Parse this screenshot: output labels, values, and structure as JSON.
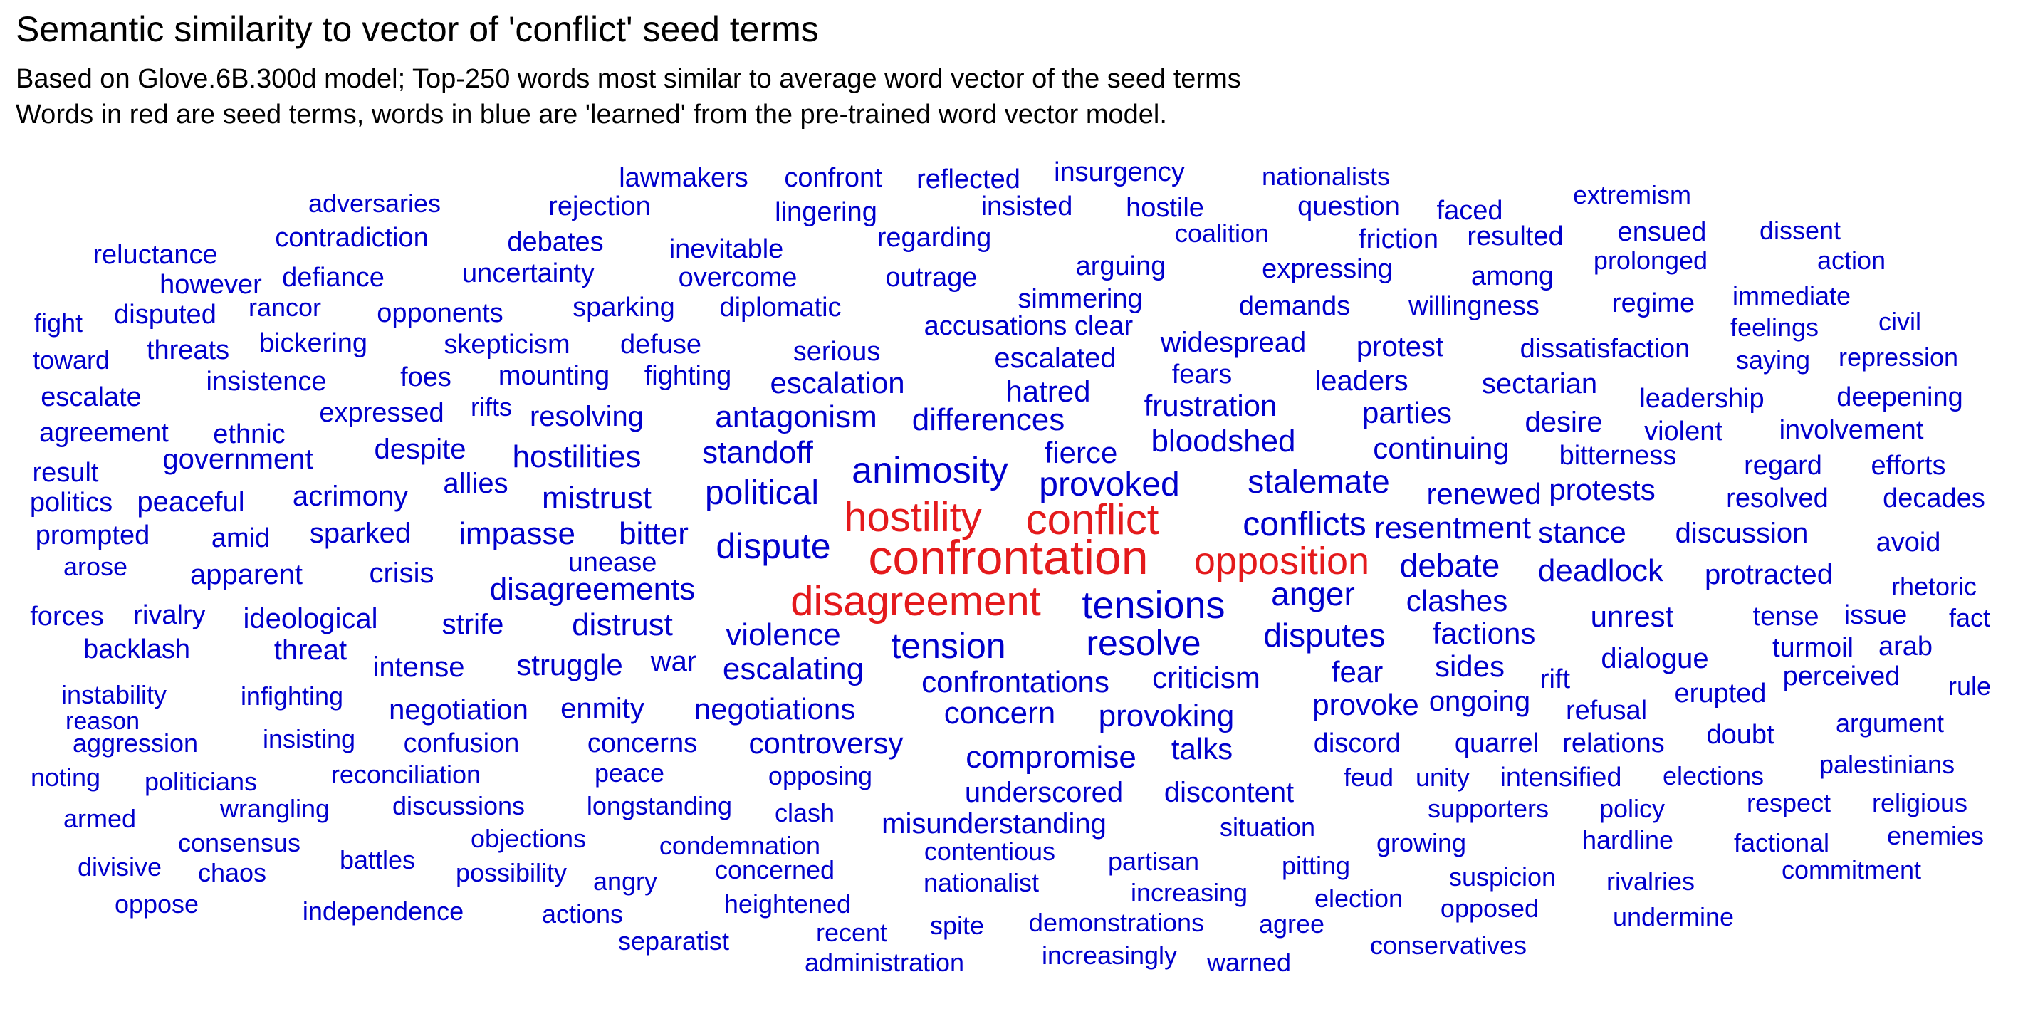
{
  "header": {
    "title": "Semantic similarity to vector of 'conflict' seed terms",
    "subtitle_1": "Based on Glove.6B.300d model; Top-250 words most similar to average word vector of the seed terms",
    "subtitle_2": "Words in red are seed terms, words in blue are 'learned' from the pre-trained word vector model."
  },
  "colors": {
    "seed": "#e41a1c",
    "learned": "#0000cc",
    "background": "#ffffff",
    "text": "#000000"
  },
  "chart_data": {
    "type": "wordcloud",
    "title": "Semantic similarity to vector of 'conflict' seed terms",
    "subtitle": [
      "Based on Glove.6B.300d model; Top-250 words most similar to average word vector of the seed terms",
      "Words in red are seed terms, words in blue are 'learned' from the pre-trained word vector model."
    ],
    "seed_terms": [
      "conflict",
      "confrontation",
      "disagreement",
      "hostility",
      "opposition"
    ],
    "words": [
      "confrontation",
      "conflict",
      "hostility",
      "disagreement",
      "opposition",
      "tensions",
      "animosity",
      "dispute",
      "provoked",
      "stalemate",
      "conflicts",
      "tension",
      "resolve",
      "political",
      "anger",
      "debate",
      "disputes",
      "bloodshed",
      "disagreements",
      "violence",
      "antagonism",
      "standoff",
      "escalating",
      "differences",
      "hostilities",
      "resentment",
      "deadlock",
      "clashes",
      "factions",
      "mistrust",
      "impasse",
      "bitter",
      "distrust",
      "confrontations",
      "concern",
      "provoking",
      "compromise",
      "criticism",
      "continuing",
      "renewed",
      "protests",
      "stance",
      "discussion",
      "protracted",
      "negotiations",
      "controversy",
      "struggle",
      "escalation",
      "fierce",
      "frustration",
      "hatred",
      "parties",
      "unrest",
      "dialogue",
      "sides",
      "fear",
      "provoke",
      "ongoing",
      "talks",
      "underscored",
      "discontent",
      "misunderstanding",
      "acrimony",
      "sparked",
      "crisis",
      "apparent",
      "ideological",
      "strife",
      "intense",
      "negotiation",
      "enmity",
      "resolving",
      "escalated",
      "widespread",
      "fears",
      "leaders",
      "sectarian",
      "desire",
      "leadership",
      "deepening",
      "violent",
      "involvement",
      "bitterness",
      "regard",
      "efforts",
      "resolved",
      "decades",
      "avoid",
      "rhetoric",
      "tense",
      "issue",
      "fact",
      "turmoil",
      "arab",
      "perceived",
      "rule",
      "erupted",
      "refusal",
      "rift",
      "quarrel",
      "discord",
      "relations",
      "doubt",
      "argument",
      "feud",
      "unity",
      "intensified",
      "elections",
      "palestinians",
      "supporters",
      "policy",
      "respect",
      "religious",
      "hardline",
      "factional",
      "enemies",
      "commitment",
      "rivalries",
      "suspicion",
      "opposed",
      "undermine",
      "growing",
      "situation",
      "partisan",
      "pitting",
      "increasing",
      "election",
      "conservatives",
      "nationalist",
      "contentious",
      "demonstrations",
      "spite",
      "agree",
      "increasingly",
      "warned",
      "recent",
      "administration",
      "heightened",
      "concerned",
      "condemnation",
      "clash",
      "opposing",
      "peace",
      "reconciliation",
      "concerns",
      "confusion",
      "insisting",
      "longstanding",
      "discussions",
      "objections",
      "possibility",
      "angry",
      "actions",
      "separatist",
      "independence",
      "battles",
      "consensus",
      "chaos",
      "wrangling",
      "politicians",
      "aggression",
      "reason",
      "instability",
      "infighting",
      "noting",
      "armed",
      "divisive",
      "oppose",
      "war",
      "threat",
      "backlash",
      "rivalry",
      "forces",
      "arose",
      "unease",
      "amid",
      "prompted",
      "politics",
      "peaceful",
      "allies",
      "despite",
      "government",
      "ethnic",
      "result",
      "agreement",
      "expressed",
      "rifts",
      "mounting",
      "fighting",
      "foes",
      "insistence",
      "escalate",
      "toward",
      "threats",
      "bickering",
      "skepticism",
      "defuse",
      "serious",
      "accusations",
      "clear",
      "simmering",
      "demands",
      "willingness",
      "regime",
      "immediate",
      "civil",
      "feelings",
      "saying",
      "repression",
      "protest",
      "dissatisfaction",
      "sparking",
      "diplomatic",
      "opponents",
      "rancor",
      "disputed",
      "fight",
      "however",
      "defiance",
      "uncertainty",
      "overcome",
      "outrage",
      "arguing",
      "expressing",
      "among",
      "prolonged",
      "action",
      "reluctance",
      "contradiction",
      "debates",
      "inevitable",
      "regarding",
      "coalition",
      "friction",
      "resulted",
      "ensued",
      "dissent",
      "adversaries",
      "rejection",
      "lingering",
      "insisted",
      "hostile",
      "question",
      "faced",
      "extremism",
      "lawmakers",
      "confront",
      "reflected",
      "insurgency",
      "nationalists"
    ]
  }
}
